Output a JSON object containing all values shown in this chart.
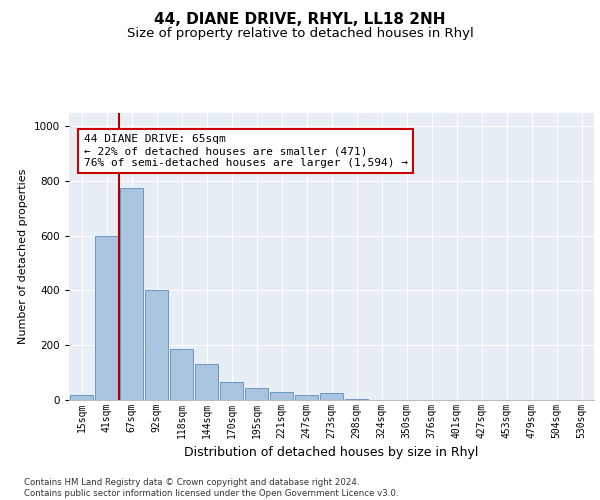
{
  "title1": "44, DIANE DRIVE, RHYL, LL18 2NH",
  "title2": "Size of property relative to detached houses in Rhyl",
  "xlabel": "Distribution of detached houses by size in Rhyl",
  "ylabel": "Number of detached properties",
  "footnote": "Contains HM Land Registry data © Crown copyright and database right 2024.\nContains public sector information licensed under the Open Government Licence v3.0.",
  "bar_labels": [
    "15sqm",
    "41sqm",
    "67sqm",
    "92sqm",
    "118sqm",
    "144sqm",
    "170sqm",
    "195sqm",
    "221sqm",
    "247sqm",
    "273sqm",
    "298sqm",
    "324sqm",
    "350sqm",
    "376sqm",
    "401sqm",
    "427sqm",
    "453sqm",
    "479sqm",
    "504sqm",
    "530sqm"
  ],
  "bar_values": [
    20,
    600,
    775,
    400,
    185,
    130,
    65,
    45,
    30,
    20,
    25,
    5,
    0,
    0,
    0,
    0,
    0,
    0,
    0,
    0,
    0
  ],
  "bar_color": "#aac4e0",
  "bar_edgecolor": "#5a8fbf",
  "vline_color": "#aa0000",
  "annotation_text": "44 DIANE DRIVE: 65sqm\n← 22% of detached houses are smaller (471)\n76% of semi-detached houses are larger (1,594) →",
  "annotation_box_color": "#ffffff",
  "annotation_box_edgecolor": "#cc0000",
  "ylim": [
    0,
    1050
  ],
  "background_color": "#e8eef5",
  "grid_color": "#ffffff",
  "title1_fontsize": 11,
  "title2_fontsize": 9.5,
  "xlabel_fontsize": 9,
  "ylabel_fontsize": 8,
  "annotation_fontsize": 8,
  "tick_fontsize": 7
}
